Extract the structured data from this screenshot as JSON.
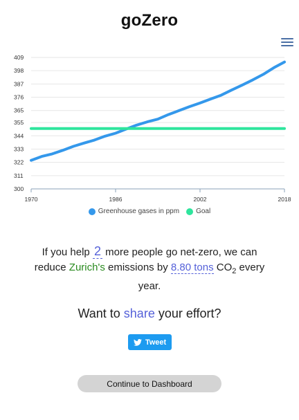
{
  "app": {
    "title": "goZero"
  },
  "header": {
    "menu_icon": "hamburger-menu-icon"
  },
  "chart_data": {
    "type": "line",
    "x": [
      1970,
      1972,
      1974,
      1976,
      1978,
      1980,
      1982,
      1984,
      1986,
      1988,
      1990,
      1992,
      1994,
      1996,
      1998,
      2000,
      2002,
      2004,
      2006,
      2008,
      2010,
      2012,
      2014,
      2016,
      2018
    ],
    "xticks": [
      1970,
      1986,
      2002,
      2018
    ],
    "yticks": [
      300,
      311,
      322,
      333,
      344,
      355,
      365,
      376,
      387,
      398,
      409
    ],
    "ylim": [
      300,
      409
    ],
    "series": [
      {
        "name": "Greenhouse gases in ppm",
        "color": "#3498eb",
        "values": [
          323.7,
          326.9,
          329.0,
          332.0,
          335.3,
          338.0,
          340.5,
          343.7,
          346.2,
          349.6,
          352.9,
          355.6,
          357.8,
          361.6,
          364.9,
          368.2,
          371.2,
          374.5,
          377.7,
          382.0,
          386.1,
          390.4,
          395.0,
          400.5,
          405.2
        ]
      },
      {
        "name": "Goal",
        "color": "#2ee59d",
        "values": [
          350,
          350,
          350,
          350,
          350,
          350,
          350,
          350,
          350,
          350,
          350,
          350,
          350,
          350,
          350,
          350,
          350,
          350,
          350,
          350,
          350,
          350,
          350,
          350,
          350
        ]
      }
    ],
    "grid": true,
    "legend": "bottom"
  },
  "message": {
    "part1": "If you help ",
    "count": "2",
    "part2": " more people go net-zero, we can reduce ",
    "city": "Zurich's",
    "part3": " emissions by ",
    "amount": "8.80 tons",
    "part4": " CO",
    "sub": "2",
    "part5": " every year."
  },
  "share": {
    "prefix": "Want to ",
    "link": "share",
    "suffix": " your effort?"
  },
  "tweet": {
    "label": "Tweet",
    "icon": "twitter-bird-icon"
  },
  "dashboard": {
    "label": "Continue to Dashboard"
  }
}
